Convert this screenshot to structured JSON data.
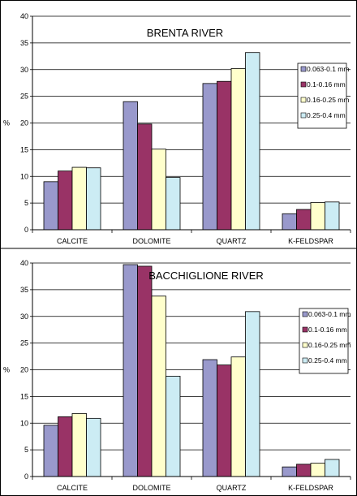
{
  "chart_data": [
    {
      "type": "bar",
      "title": "BRENTA RIVER",
      "ylabel": "%",
      "ylim": [
        0,
        40
      ],
      "yticks": [
        0,
        5,
        10,
        15,
        20,
        25,
        30,
        35,
        40
      ],
      "grid": true,
      "legend_position": "right",
      "categories": [
        "CALCITE",
        "DOLOMITE",
        "QUARTZ",
        "K-FELDSPAR"
      ],
      "series": [
        {
          "name": "0.063-0.1 mm",
          "color": "#9999cc",
          "values": [
            9.0,
            24.0,
            27.4,
            3.0
          ]
        },
        {
          "name": "0.1-0.16  mm",
          "color": "#993366",
          "values": [
            11.0,
            19.8,
            27.8,
            3.8
          ]
        },
        {
          "name": "0.16-0.25 mm",
          "color": "#ffffcc",
          "values": [
            11.7,
            15.1,
            30.2,
            5.1
          ]
        },
        {
          "name": "0.25-0.4  mm",
          "color": "#ccecf4",
          "values": [
            11.6,
            9.8,
            33.2,
            5.2
          ]
        }
      ]
    },
    {
      "type": "bar",
      "title": "BACCHIGLIONE RIVER",
      "ylabel": "%",
      "ylim": [
        0,
        40
      ],
      "yticks": [
        0,
        5,
        10,
        15,
        20,
        25,
        30,
        35,
        40
      ],
      "grid": true,
      "legend_position": "right",
      "categories": [
        "CALCITE",
        "DOLOMITE",
        "QUARTZ",
        "K-FELDSPAR"
      ],
      "series": [
        {
          "name": "0.063-0.1 mm",
          "color": "#9999cc",
          "values": [
            9.6,
            39.7,
            21.9,
            1.8
          ]
        },
        {
          "name": "0.1-0.16  mm",
          "color": "#993366",
          "values": [
            11.2,
            39.4,
            20.9,
            2.3
          ]
        },
        {
          "name": "0.16-0.25 mm",
          "color": "#ffffcc",
          "values": [
            11.8,
            33.8,
            22.4,
            2.5
          ]
        },
        {
          "name": "0.25-0.4  mm",
          "color": "#ccecf4",
          "values": [
            10.9,
            18.8,
            30.9,
            3.2
          ]
        }
      ]
    }
  ]
}
